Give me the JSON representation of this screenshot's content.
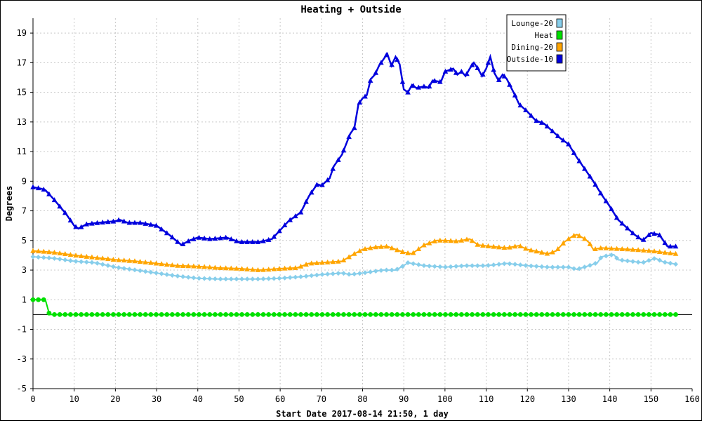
{
  "chart_data": {
    "type": "line",
    "title": "Heating + Outside",
    "xlabel": "Start Date 2017-08-14 21:50, 1 day",
    "ylabel": "Degrees",
    "xlim": [
      0,
      160
    ],
    "ylim": [
      -5,
      20
    ],
    "xticks": [
      0,
      10,
      20,
      30,
      40,
      50,
      60,
      70,
      80,
      90,
      100,
      110,
      120,
      130,
      140,
      150,
      160
    ],
    "yticks": [
      -5,
      -3,
      -1,
      1,
      3,
      5,
      7,
      9,
      11,
      13,
      15,
      17,
      19
    ],
    "grid": true,
    "legend_position": "top-right",
    "series": [
      {
        "name": "Lounge-20",
        "color": "#87CEEB",
        "marker": "diamond",
        "points": [
          [
            0,
            3.9
          ],
          [
            5,
            3.8
          ],
          [
            10,
            3.6
          ],
          [
            15,
            3.5
          ],
          [
            20,
            3.2
          ],
          [
            25,
            3.0
          ],
          [
            30,
            2.8
          ],
          [
            35,
            2.6
          ],
          [
            40,
            2.45
          ],
          [
            45,
            2.4
          ],
          [
            50,
            2.4
          ],
          [
            55,
            2.4
          ],
          [
            60,
            2.45
          ],
          [
            65,
            2.55
          ],
          [
            70,
            2.7
          ],
          [
            75,
            2.8
          ],
          [
            77,
            2.7
          ],
          [
            80,
            2.8
          ],
          [
            85,
            3.0
          ],
          [
            88,
            3.0
          ],
          [
            90,
            3.3
          ],
          [
            91,
            3.5
          ],
          [
            93,
            3.4
          ],
          [
            95,
            3.3
          ],
          [
            100,
            3.2
          ],
          [
            105,
            3.3
          ],
          [
            110,
            3.3
          ],
          [
            115,
            3.45
          ],
          [
            120,
            3.3
          ],
          [
            125,
            3.2
          ],
          [
            130,
            3.2
          ],
          [
            132,
            3.05
          ],
          [
            135,
            3.3
          ],
          [
            137,
            3.5
          ],
          [
            138,
            3.9
          ],
          [
            140,
            4.0
          ],
          [
            141,
            4.05
          ],
          [
            142,
            3.7
          ],
          [
            145,
            3.6
          ],
          [
            148,
            3.5
          ],
          [
            150,
            3.7
          ],
          [
            151,
            3.8
          ],
          [
            153,
            3.55
          ],
          [
            156,
            3.4
          ]
        ]
      },
      {
        "name": "Heat",
        "color": "#00E000",
        "marker": "circle",
        "points": [
          [
            0,
            1
          ],
          [
            1,
            1
          ],
          [
            2,
            1
          ],
          [
            3,
            1
          ],
          [
            4,
            0
          ],
          [
            10,
            0
          ],
          [
            20,
            0
          ],
          [
            30,
            0
          ],
          [
            40,
            0
          ],
          [
            50,
            0
          ],
          [
            60,
            0
          ],
          [
            70,
            0
          ],
          [
            80,
            0
          ],
          [
            90,
            0
          ],
          [
            100,
            0
          ],
          [
            110,
            0
          ],
          [
            120,
            0
          ],
          [
            130,
            0
          ],
          [
            140,
            0
          ],
          [
            150,
            0
          ],
          [
            156,
            0
          ]
        ]
      },
      {
        "name": "Dining-20",
        "color": "#FFA500",
        "marker": "triangle",
        "points": [
          [
            0,
            4.3
          ],
          [
            5,
            4.2
          ],
          [
            10,
            4.0
          ],
          [
            15,
            3.85
          ],
          [
            20,
            3.7
          ],
          [
            25,
            3.6
          ],
          [
            30,
            3.45
          ],
          [
            35,
            3.3
          ],
          [
            40,
            3.25
          ],
          [
            45,
            3.15
          ],
          [
            50,
            3.1
          ],
          [
            55,
            3.0
          ],
          [
            60,
            3.1
          ],
          [
            64,
            3.15
          ],
          [
            67,
            3.45
          ],
          [
            70,
            3.5
          ],
          [
            75,
            3.6
          ],
          [
            78,
            4.1
          ],
          [
            80,
            4.4
          ],
          [
            83,
            4.55
          ],
          [
            86,
            4.6
          ],
          [
            88,
            4.4
          ],
          [
            90,
            4.2
          ],
          [
            92,
            4.1
          ],
          [
            95,
            4.7
          ],
          [
            98,
            5.0
          ],
          [
            100,
            5.0
          ],
          [
            103,
            4.95
          ],
          [
            106,
            5.1
          ],
          [
            108,
            4.7
          ],
          [
            111,
            4.6
          ],
          [
            115,
            4.5
          ],
          [
            118,
            4.65
          ],
          [
            120,
            4.4
          ],
          [
            125,
            4.1
          ],
          [
            127,
            4.3
          ],
          [
            129,
            4.9
          ],
          [
            131,
            5.3
          ],
          [
            132,
            5.4
          ],
          [
            134,
            5.1
          ],
          [
            135,
            4.85
          ],
          [
            136,
            4.4
          ],
          [
            138,
            4.5
          ],
          [
            141,
            4.45
          ],
          [
            145,
            4.4
          ],
          [
            150,
            4.3
          ],
          [
            153,
            4.2
          ],
          [
            156,
            4.1
          ]
        ]
      },
      {
        "name": "Outside-10",
        "color": "#0000DD",
        "marker": "triangle",
        "points": [
          [
            0,
            8.6
          ],
          [
            2,
            8.5
          ],
          [
            3,
            8.4
          ],
          [
            5,
            7.8
          ],
          [
            8,
            6.8
          ],
          [
            10,
            6.0
          ],
          [
            11,
            5.8
          ],
          [
            13,
            6.1
          ],
          [
            16,
            6.2
          ],
          [
            20,
            6.3
          ],
          [
            21,
            6.4
          ],
          [
            23,
            6.2
          ],
          [
            26,
            6.2
          ],
          [
            30,
            6.0
          ],
          [
            33,
            5.4
          ],
          [
            36,
            4.7
          ],
          [
            38,
            5.0
          ],
          [
            40,
            5.2
          ],
          [
            43,
            5.1
          ],
          [
            47,
            5.2
          ],
          [
            50,
            4.9
          ],
          [
            55,
            4.9
          ],
          [
            58,
            5.1
          ],
          [
            62,
            6.3
          ],
          [
            65,
            6.9
          ],
          [
            67,
            8.0
          ],
          [
            69,
            8.8
          ],
          [
            70,
            8.7
          ],
          [
            72,
            9.2
          ],
          [
            73,
            10.0
          ],
          [
            75,
            10.8
          ],
          [
            77,
            12.2
          ],
          [
            78,
            12.6
          ],
          [
            79,
            14.2
          ],
          [
            80,
            14.6
          ],
          [
            81,
            14.8
          ],
          [
            82,
            15.9
          ],
          [
            83,
            16.2
          ],
          [
            84,
            16.8
          ],
          [
            86,
            17.6
          ],
          [
            87,
            16.8
          ],
          [
            88,
            17.4
          ],
          [
            89,
            16.9
          ],
          [
            90,
            15.2
          ],
          [
            91,
            15.0
          ],
          [
            92,
            15.5
          ],
          [
            93,
            15.3
          ],
          [
            95,
            15.4
          ],
          [
            96,
            15.3
          ],
          [
            97,
            15.8
          ],
          [
            99,
            15.7
          ],
          [
            100,
            16.4
          ],
          [
            102,
            16.6
          ],
          [
            103,
            16.2
          ],
          [
            104,
            16.4
          ],
          [
            105,
            16.1
          ],
          [
            106,
            16.6
          ],
          [
            107,
            17.0
          ],
          [
            108,
            16.6
          ],
          [
            109,
            16.1
          ],
          [
            110,
            16.6
          ],
          [
            111,
            17.4
          ],
          [
            112,
            16.3
          ],
          [
            113,
            15.8
          ],
          [
            114,
            16.2
          ],
          [
            115,
            15.9
          ],
          [
            117,
            14.8
          ],
          [
            118,
            14.2
          ],
          [
            120,
            13.7
          ],
          [
            122,
            13.1
          ],
          [
            124,
            12.9
          ],
          [
            126,
            12.4
          ],
          [
            128,
            11.9
          ],
          [
            130,
            11.5
          ],
          [
            132,
            10.6
          ],
          [
            134,
            9.8
          ],
          [
            136,
            9.0
          ],
          [
            138,
            8.1
          ],
          [
            140,
            7.3
          ],
          [
            142,
            6.4
          ],
          [
            144,
            5.9
          ],
          [
            146,
            5.4
          ],
          [
            148,
            5.0
          ],
          [
            150,
            5.5
          ],
          [
            152,
            5.4
          ],
          [
            154,
            4.6
          ],
          [
            156,
            4.6
          ]
        ]
      }
    ]
  }
}
